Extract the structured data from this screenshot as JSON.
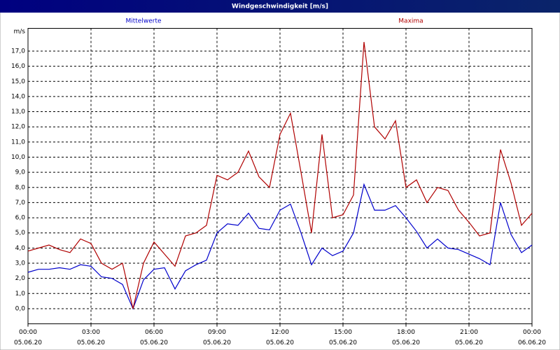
{
  "chart_data": {
    "type": "line",
    "title": "Windgeschwindigkeit [m/s]",
    "y_unit": "m/s",
    "x": [
      0,
      0.5,
      1,
      1.5,
      2,
      2.5,
      3,
      3.5,
      4,
      4.5,
      5,
      5.5,
      6,
      6.5,
      7,
      7.5,
      8,
      8.5,
      9,
      9.5,
      10,
      10.5,
      11,
      11.5,
      12,
      12.5,
      13,
      13.5,
      14,
      14.5,
      15,
      15.5,
      16,
      16.5,
      17,
      17.5,
      18,
      18.5,
      19,
      19.5,
      20,
      20.5,
      21,
      21.5,
      22,
      22.5,
      23,
      23.5,
      24
    ],
    "series": [
      {
        "name": "Mittelwerte",
        "color": "#0000cc",
        "values": [
          2.4,
          2.6,
          2.6,
          2.7,
          2.6,
          2.9,
          2.8,
          2.1,
          2.0,
          1.6,
          0.0,
          1.9,
          2.6,
          2.7,
          1.3,
          2.5,
          2.9,
          3.2,
          5.0,
          5.6,
          5.5,
          6.3,
          5.3,
          5.2,
          6.5,
          6.9,
          5.0,
          2.9,
          4.0,
          3.5,
          3.8,
          5.0,
          8.2,
          6.5,
          6.5,
          6.8,
          6.0,
          5.1,
          4.0,
          4.6,
          4.0,
          3.9,
          3.6,
          3.3,
          2.9,
          7.0,
          4.9,
          3.7,
          4.2
        ]
      },
      {
        "name": "Maxima",
        "color": "#b00000",
        "values": [
          3.8,
          4.0,
          4.2,
          3.9,
          3.7,
          4.6,
          4.3,
          3.0,
          2.6,
          3.0,
          0.0,
          3.0,
          4.4,
          3.6,
          2.8,
          4.8,
          5.0,
          5.5,
          8.8,
          8.5,
          9.0,
          10.4,
          8.7,
          8.0,
          11.5,
          12.9,
          9.0,
          5.0,
          11.5,
          6.0,
          6.2,
          7.5,
          17.6,
          12.0,
          11.2,
          12.4,
          8.0,
          8.5,
          7.0,
          8.0,
          7.8,
          6.5,
          5.7,
          4.8,
          5.0,
          10.5,
          8.3,
          5.5,
          6.3
        ]
      }
    ],
    "ylim": [
      -1,
      18.5
    ],
    "yticks": [
      {
        "value": 0,
        "label": "0,0"
      },
      {
        "value": 1,
        "label": "1,0"
      },
      {
        "value": 2,
        "label": "2,0"
      },
      {
        "value": 3,
        "label": "3,0"
      },
      {
        "value": 4,
        "label": "4,0"
      },
      {
        "value": 5,
        "label": "5,0"
      },
      {
        "value": 6,
        "label": "6,0"
      },
      {
        "value": 7,
        "label": "7,0"
      },
      {
        "value": 8,
        "label": "8,0"
      },
      {
        "value": 9,
        "label": "9,0"
      },
      {
        "value": 10,
        "label": "10,0"
      },
      {
        "value": 11,
        "label": "11,0"
      },
      {
        "value": 12,
        "label": "12,0"
      },
      {
        "value": 13,
        "label": "13,0"
      },
      {
        "value": 14,
        "label": "14,0"
      },
      {
        "value": 15,
        "label": "15,0"
      },
      {
        "value": 16,
        "label": "16,0"
      },
      {
        "value": 17,
        "label": "17,0"
      }
    ],
    "xlim": [
      0,
      24
    ],
    "xticks": [
      {
        "value": 0,
        "label": "00:00"
      },
      {
        "value": 3,
        "label": "03:00"
      },
      {
        "value": 6,
        "label": "06:00"
      },
      {
        "value": 9,
        "label": "09:00"
      },
      {
        "value": 12,
        "label": "12:00"
      },
      {
        "value": 15,
        "label": "15:00"
      },
      {
        "value": 18,
        "label": "18:00"
      },
      {
        "value": 21,
        "label": "21:00"
      },
      {
        "value": 24,
        "label": "00:00"
      }
    ],
    "xtick_dates": [
      "05.06.20",
      "05.06.20",
      "05.06.20",
      "05.06.20",
      "05.06.20",
      "05.06.20",
      "05.06.20",
      "05.06.20",
      "06.06.20"
    ],
    "grid": true
  }
}
